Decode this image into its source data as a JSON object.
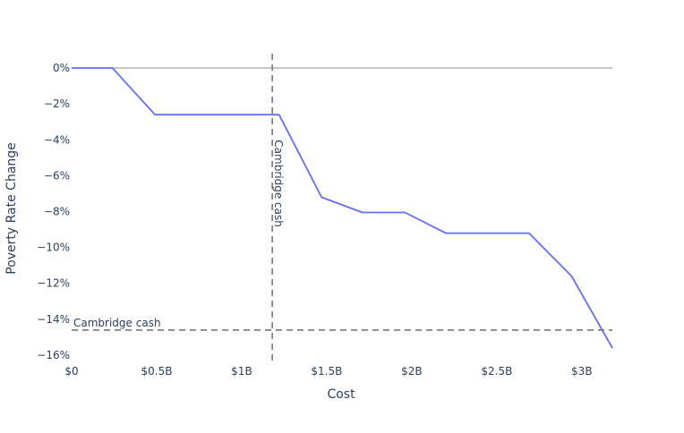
{
  "chart_data": {
    "type": "line",
    "xlabel": "Cost",
    "ylabel": "Poverty Rate Change",
    "xlim": [
      0,
      3.18
    ],
    "ylim": [
      -16.4,
      0.8
    ],
    "x_ticks": [
      {
        "value": 0,
        "label": "$0"
      },
      {
        "value": 0.5,
        "label": "$0.5B"
      },
      {
        "value": 1,
        "label": "$1B"
      },
      {
        "value": 1.5,
        "label": "$1.5B"
      },
      {
        "value": 2,
        "label": "$2B"
      },
      {
        "value": 2.5,
        "label": "$2.5B"
      },
      {
        "value": 3,
        "label": "$3B"
      }
    ],
    "y_ticks": [
      {
        "value": 0,
        "label": "0%"
      },
      {
        "value": -2,
        "label": "−2%"
      },
      {
        "value": -4,
        "label": "−4%"
      },
      {
        "value": -6,
        "label": "−6%"
      },
      {
        "value": -8,
        "label": "−8%"
      },
      {
        "value": -10,
        "label": "−10%"
      },
      {
        "value": -12,
        "label": "−12%"
      },
      {
        "value": -14,
        "label": "−14%"
      },
      {
        "value": -16,
        "label": "−16%"
      }
    ],
    "series": [
      {
        "color": "#636efa",
        "x": [
          0,
          0.24,
          0.49,
          0.73,
          0.98,
          1.22,
          1.47,
          1.71,
          1.96,
          2.2,
          2.45,
          2.69,
          2.94,
          3.18
        ],
        "y": [
          0,
          0,
          -2.6,
          -2.6,
          -2.6,
          -2.6,
          -7.2,
          -8.05,
          -8.05,
          -9.2,
          -9.2,
          -9.2,
          -11.6,
          -15.6
        ]
      }
    ],
    "annotations": [
      {
        "type": "vline",
        "x": 1.18,
        "label": "Cambridge cash",
        "color": "#777777",
        "dash": "dash"
      },
      {
        "type": "hline",
        "y": -14.6,
        "label": "Cambridge cash",
        "color": "#777777",
        "dash": "dash"
      }
    ],
    "zero_line": true,
    "grid": false
  }
}
